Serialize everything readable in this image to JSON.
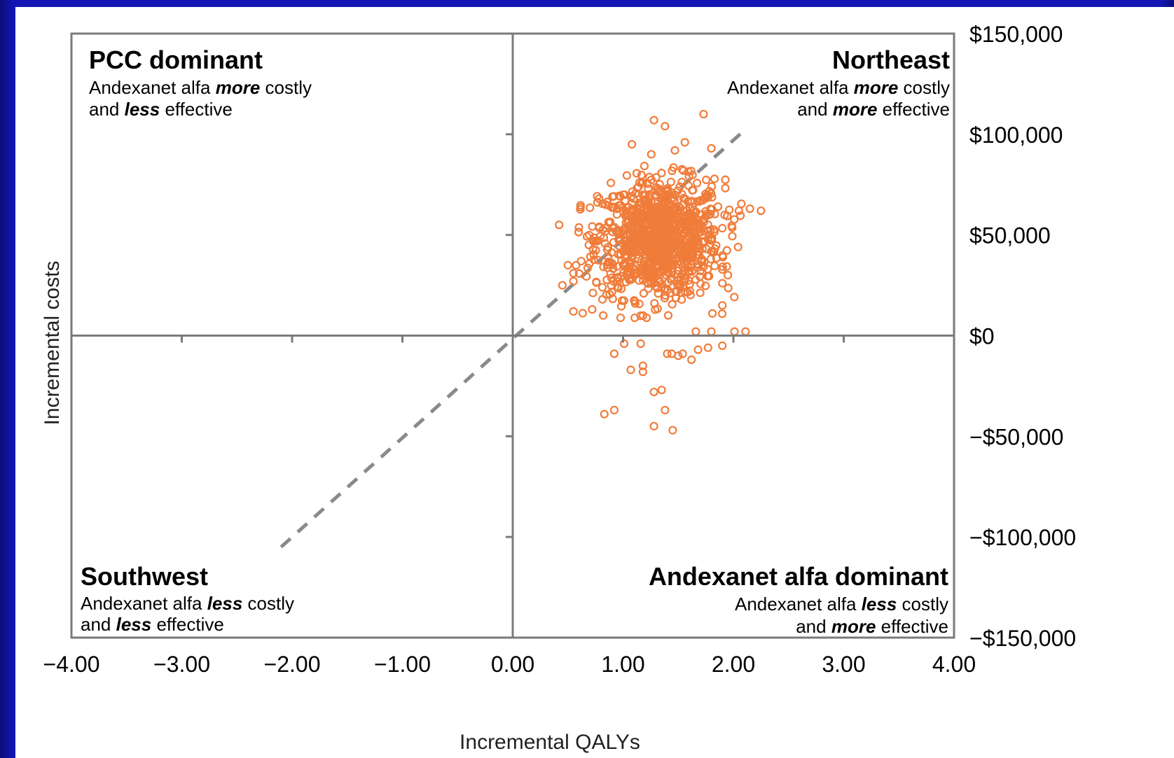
{
  "chart_data": {
    "type": "scatter",
    "xlabel": "Incremental QALYs",
    "ylabel": "Incremental costs",
    "xlim": [
      -4.0,
      4.0
    ],
    "ylim": [
      -150000,
      150000
    ],
    "x_ticks": [
      "−4.00",
      "−3.00",
      "−2.00",
      "−1.00",
      "0.00",
      "1.00",
      "2.00",
      "3.00",
      "4.00"
    ],
    "y_ticks": [
      "$150,000",
      "$100,000",
      "$50,000",
      "$0",
      "−$50,000",
      "−$100,000",
      "−$150,000"
    ],
    "marker_color": "#f07c3a",
    "axis_color": "#7a7a7a",
    "threshold_line": {
      "from": [
        -2.1,
        -105000
      ],
      "to": [
        2.1,
        102000
      ],
      "style": "dashed"
    },
    "quadrants": {
      "northwest": {
        "title": "PCC dominant",
        "line1_pre": "Andexanet alfa ",
        "line1_em": "more",
        "line1_post": " costly",
        "line2_pre": "and ",
        "line2_em": "less",
        "line2_post": " effective"
      },
      "northeast": {
        "title": "Northeast",
        "line1_pre": "Andexanet alfa ",
        "line1_em": "more",
        "line1_post": " costly",
        "line2_pre": "and ",
        "line2_em": "more",
        "line2_post": " effective"
      },
      "southwest": {
        "title": "Southwest",
        "line1_pre": "Andexanet alfa ",
        "line1_em": "less",
        "line1_post": " costly",
        "line2_pre": "and ",
        "line2_em": "less",
        "line2_post": " effective"
      },
      "southeast": {
        "title": "Andexanet alfa dominant",
        "line1_pre": "Andexanet alfa ",
        "line1_em": "less",
        "line1_post": " costly",
        "line2_pre": "and ",
        "line2_em": "more",
        "line2_post": " effective"
      }
    },
    "outlier_points": [
      [
        1.28,
        107000
      ],
      [
        1.38,
        104000
      ],
      [
        1.73,
        110000
      ],
      [
        1.56,
        96000
      ],
      [
        1.47,
        92000
      ],
      [
        1.08,
        95000
      ],
      [
        1.8,
        93000
      ],
      [
        0.42,
        55000
      ],
      [
        0.5,
        35000
      ],
      [
        0.62,
        37000
      ],
      [
        0.55,
        31000
      ],
      [
        0.45,
        25000
      ],
      [
        0.55,
        27000
      ],
      [
        0.55,
        12000
      ],
      [
        0.72,
        13000
      ],
      [
        0.82,
        10000
      ],
      [
        2.05,
        62000
      ],
      [
        2.25,
        62000
      ],
      [
        2.15,
        63000
      ],
      [
        1.95,
        30000
      ],
      [
        1.9,
        26000
      ],
      [
        2.11,
        2000
      ],
      [
        1.9,
        15000
      ],
      [
        1.81,
        11000
      ],
      [
        1.8,
        2000
      ],
      [
        0.92,
        -9000
      ],
      [
        1.07,
        -17000
      ],
      [
        1.18,
        -15000
      ],
      [
        1.01,
        -4000
      ],
      [
        1.16,
        -4000
      ],
      [
        1.4,
        -9000
      ],
      [
        1.5,
        -10000
      ],
      [
        1.62,
        -12000
      ],
      [
        1.68,
        -7000
      ],
      [
        1.44,
        -9000
      ],
      [
        1.54,
        -9000
      ],
      [
        1.77,
        -6000
      ],
      [
        1.9,
        -5000
      ],
      [
        1.28,
        -28000
      ],
      [
        1.35,
        -27000
      ],
      [
        0.83,
        -39000
      ],
      [
        0.92,
        -37000
      ],
      [
        1.38,
        -37000
      ],
      [
        1.28,
        -45000
      ],
      [
        1.45,
        -47000
      ],
      [
        1.18,
        -18000
      ],
      [
        1.66,
        2000
      ],
      [
        2.01,
        2000
      ]
    ],
    "cluster": {
      "count": 1000,
      "center": [
        1.32,
        48000
      ],
      "sd": [
        0.28,
        14500
      ]
    }
  }
}
